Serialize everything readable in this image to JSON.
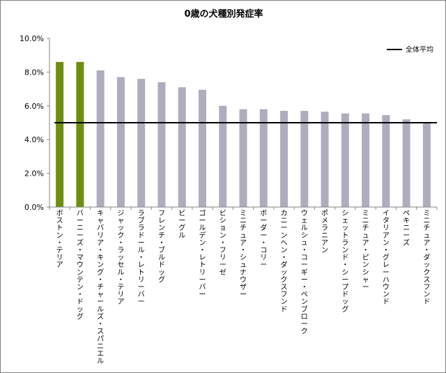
{
  "chart_data": {
    "type": "bar",
    "title": "0歳の犬種別発症率",
    "categories": [
      "ボストン・テリア",
      "バーニーズ・マウンテン・ドッグ",
      "キャバリア・キング・チャールズ・スパニエル",
      "ジャック・ラッセル・テリア",
      "ラブラドール・レトリーバー",
      "フレンチ・ブルドッグ",
      "ビーグル",
      "ゴールデン・レトリーバー",
      "ビション・フリーゼ",
      "ミニチュア・シュナウザー",
      "ボーダー・コリー",
      "カニーンヘン・ダックスフンド",
      "ウェルシュ・コーギー・ペンブローク",
      "ポメラニアン",
      "シェットランド・シープドッグ",
      "ミニチュア・ピンシャー",
      "イタリアン・グレーハウンド",
      "ペキニーズ",
      "ミニチュア・ダックスフンド"
    ],
    "values": [
      8.6,
      8.6,
      8.1,
      7.7,
      7.6,
      7.4,
      7.1,
      6.95,
      6.0,
      5.8,
      5.8,
      5.7,
      5.7,
      5.65,
      5.55,
      5.55,
      5.45,
      5.2,
      5.0
    ],
    "highlight_indices": [
      0,
      1
    ],
    "average": 5.0,
    "legend": [
      "全体平均"
    ],
    "legend_position": "top-right",
    "yticks": [
      "0.0%",
      "2.0%",
      "4.0%",
      "6.0%",
      "8.0%",
      "10.0%"
    ],
    "ylim": [
      0,
      10
    ],
    "xlabel": "",
    "ylabel": "",
    "grid": false,
    "colors": {
      "highlight": "#6e8e10",
      "normal": "#adadbd",
      "average_line": "#000000",
      "axis": "#868686"
    }
  }
}
